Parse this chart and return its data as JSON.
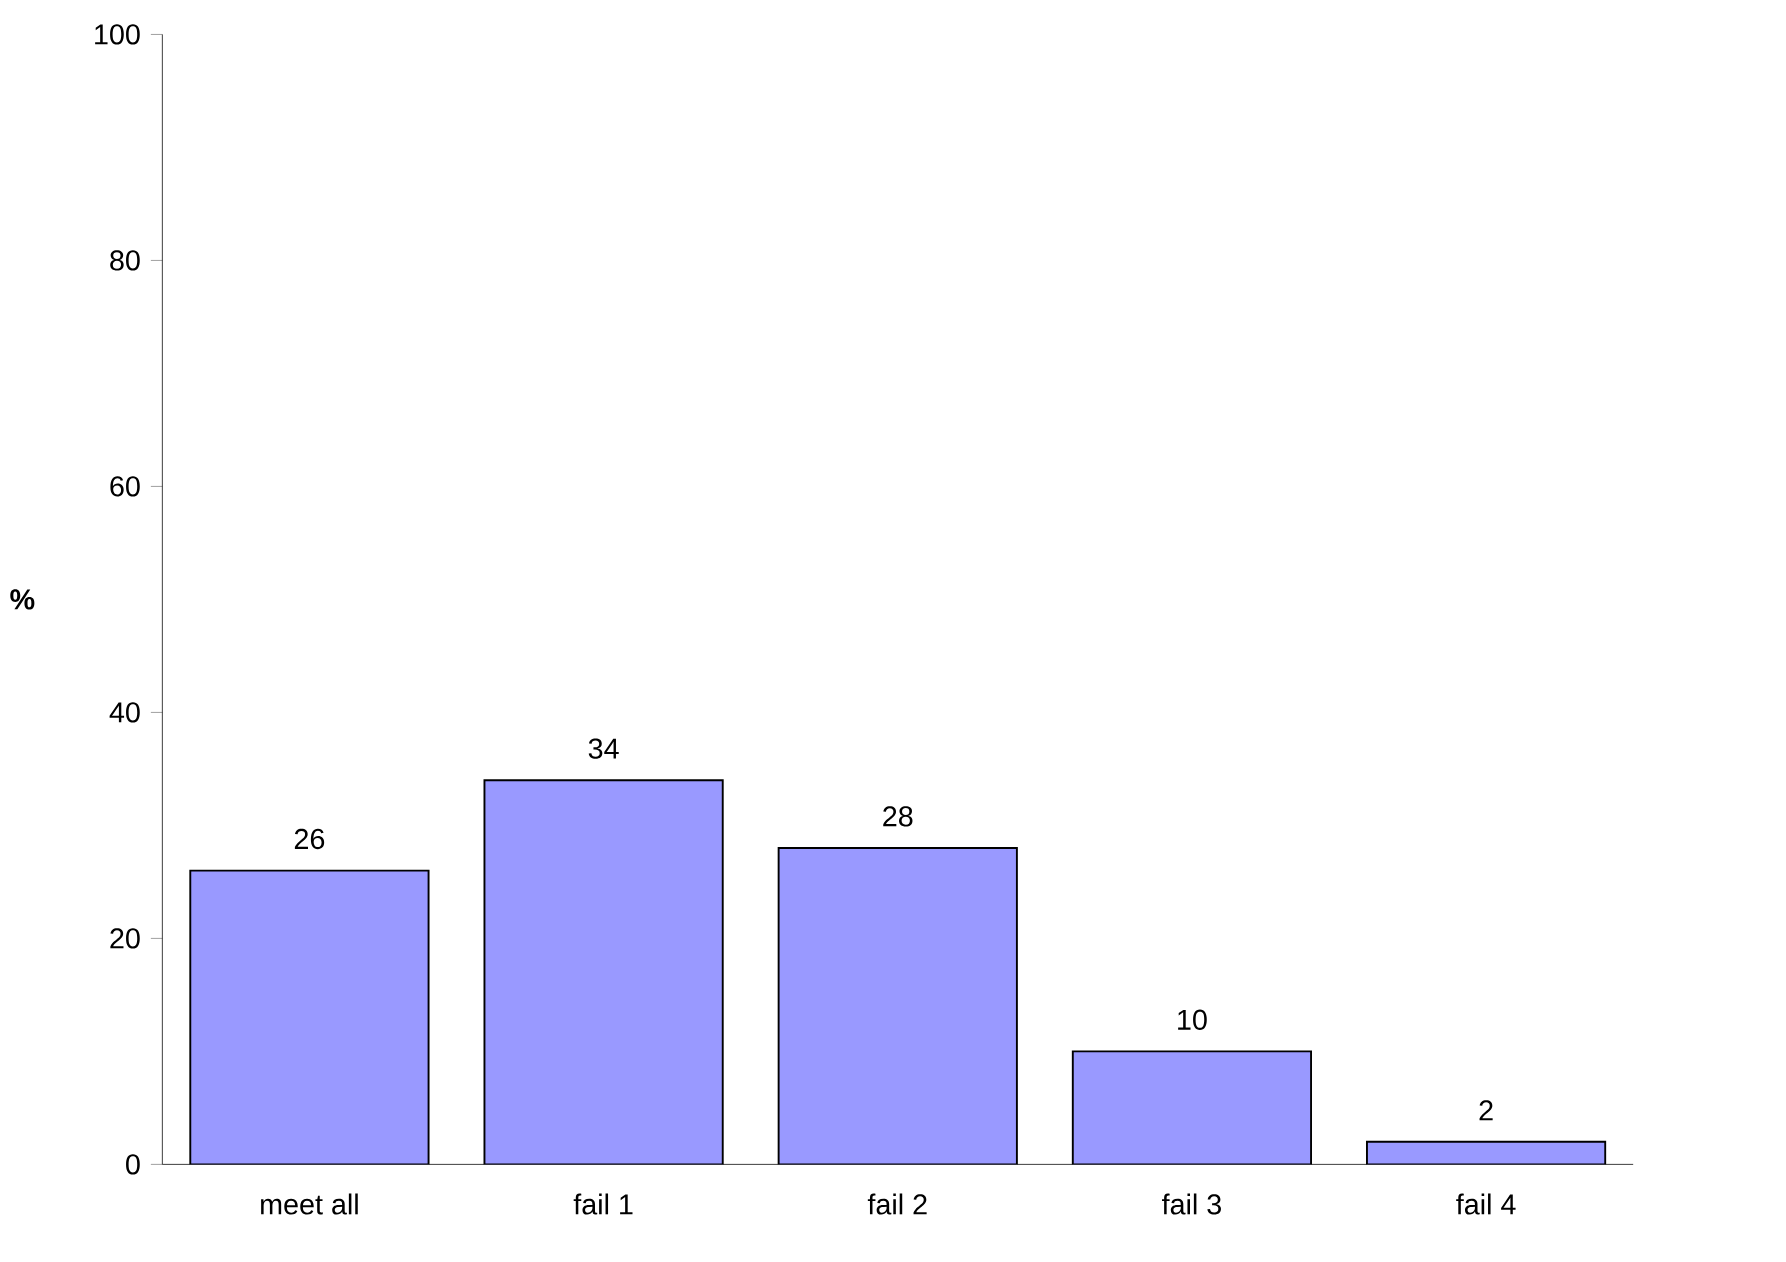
{
  "chart_data": {
    "type": "bar",
    "ylabel": "%",
    "categories": [
      "meet all",
      "fail 1",
      "fail 2",
      "fail 3",
      "fail 4"
    ],
    "values": [
      26,
      34,
      28,
      10,
      2
    ],
    "color": "#9999ff",
    "ylim": [
      0,
      100
    ],
    "yticks": [
      0,
      20,
      40,
      60,
      80,
      100
    ],
    "data_labels": true
  }
}
